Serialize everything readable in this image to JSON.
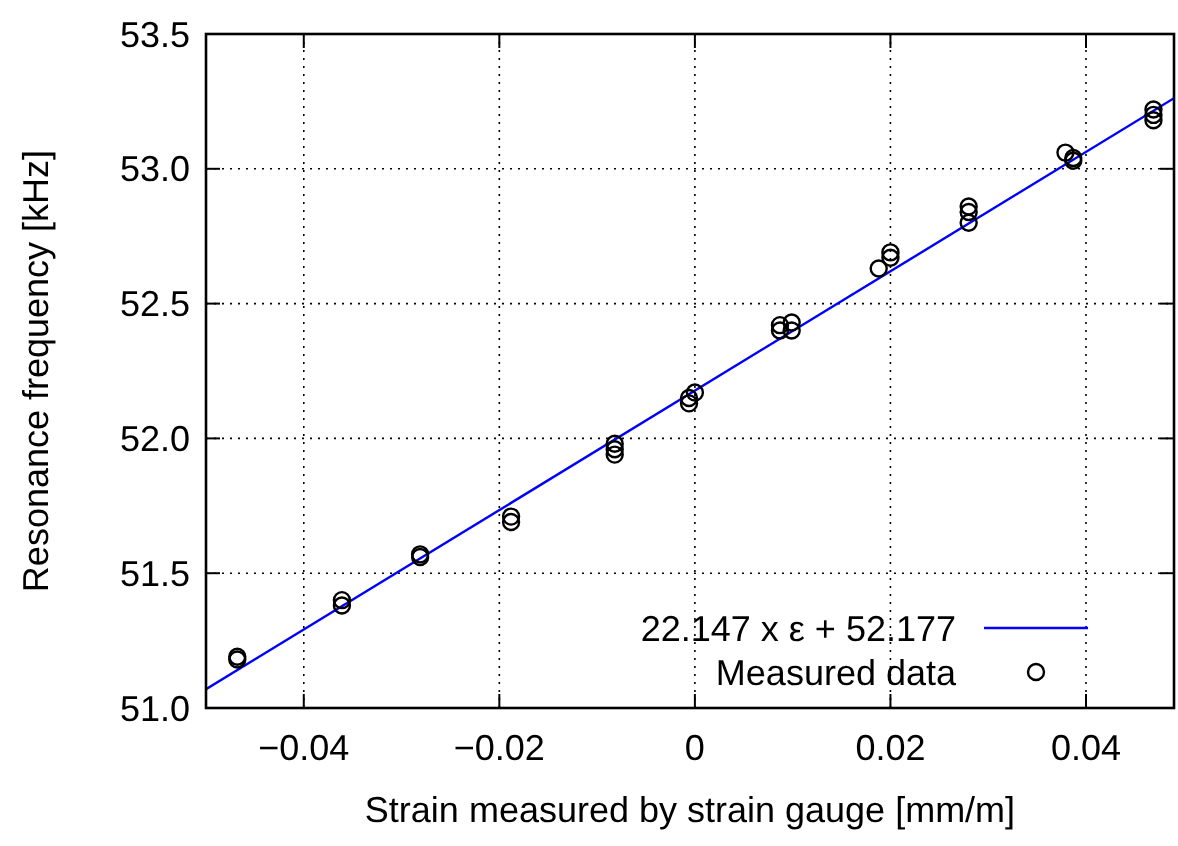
{
  "chart_data": {
    "type": "scatter",
    "xlabel": "Strain measured by strain gauge [mm/m]",
    "ylabel": "Resonance frequency [kHz]",
    "xlim": [
      -0.05,
      0.049
    ],
    "ylim": [
      51,
      53.5
    ],
    "xticks": [
      {
        "value": -0.04,
        "label": "−0.04"
      },
      {
        "value": -0.02,
        "label": "−0.02"
      },
      0,
      0.02,
      0.04
    ],
    "yticks": [
      {
        "value": 51,
        "label": "51.0"
      },
      51.5,
      {
        "value": 52,
        "label": "52.0"
      },
      52.5,
      {
        "value": 53,
        "label": "53.0"
      },
      53.5
    ],
    "grid": true,
    "legend": "bottom right",
    "series": [
      {
        "name": "22.147 x ε + 52.177",
        "type": "line",
        "color": "#0000ff",
        "marker": "none",
        "x": [
          -0.05,
          0.049
        ],
        "values": [
          51.07,
          53.262
        ]
      },
      {
        "name": "Measured data",
        "color": "#000000",
        "marker": "circle",
        "x": [
          -0.0468,
          -0.0468,
          -0.0361,
          -0.0361,
          -0.0281,
          -0.0281,
          -0.0188,
          -0.0188,
          -0.0082,
          -0.0082,
          -0.0082,
          -0.0006,
          -0.0006,
          0.0,
          0.0087,
          0.0087,
          0.0099,
          0.0099,
          0.0188,
          0.02,
          0.02,
          0.028,
          0.028,
          0.028,
          0.0379,
          0.0387,
          0.0387,
          0.0469,
          0.0469,
          0.0469
        ],
        "values": [
          51.18,
          51.19,
          51.38,
          51.4,
          51.56,
          51.57,
          51.69,
          51.71,
          51.94,
          51.96,
          51.98,
          52.13,
          52.15,
          52.17,
          52.4,
          52.42,
          52.4,
          52.43,
          52.63,
          52.67,
          52.69,
          52.8,
          52.84,
          52.86,
          53.06,
          53.03,
          53.04,
          53.18,
          53.2,
          53.22
        ]
      }
    ]
  }
}
